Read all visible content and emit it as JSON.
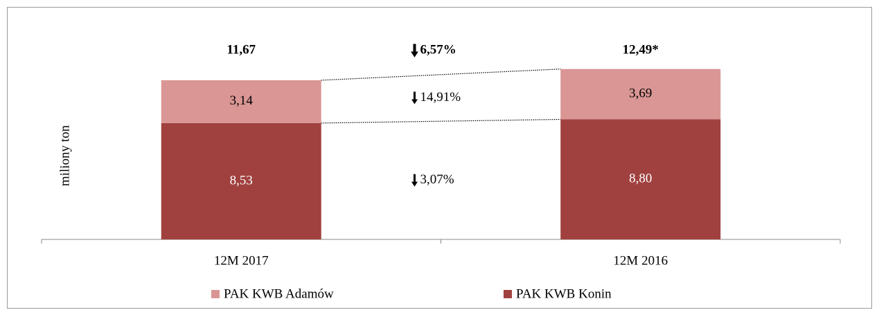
{
  "chart_data": {
    "type": "stacked_bar",
    "y_axis_label": "miliony ton",
    "categories": [
      "12M 2017",
      "12M 2016"
    ],
    "series": [
      {
        "name": "PAK KWB Konin",
        "color": "#a0413f",
        "label_color": "#ffffff",
        "values": [
          8.53,
          8.8
        ],
        "value_labels": [
          "8,53",
          "8,80"
        ],
        "change": "3,07%"
      },
      {
        "name": "PAK KWB Adamów",
        "color": "#d99694",
        "label_color": "#000000",
        "values": [
          3.14,
          3.69
        ],
        "value_labels": [
          "3,14",
          "3,69"
        ],
        "change": "14,91%"
      }
    ],
    "totals": [
      11.67,
      12.49
    ],
    "total_labels": [
      "11,67",
      "12,49*"
    ],
    "total_change": "6,57%",
    "ylim": [
      0,
      14
    ]
  }
}
